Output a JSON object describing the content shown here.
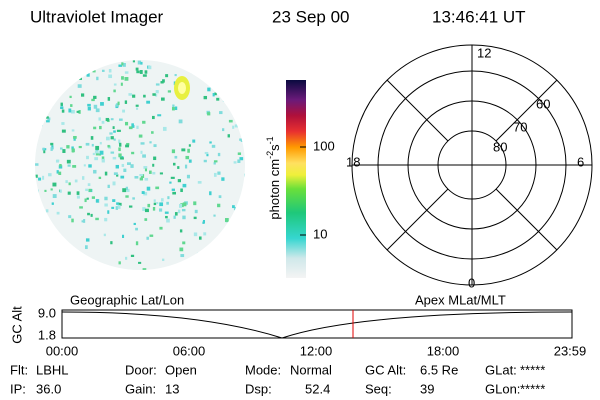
{
  "header": {
    "instrument": "Ultraviolet Imager",
    "date": "23 Sep 00",
    "time": "13:46:41 UT"
  },
  "colorbar": {
    "unit": "photon cm",
    "exp1": "-2",
    "unit2": "s",
    "exp2": "-1",
    "ticks": [
      "100",
      "10"
    ]
  },
  "polar_plot": {
    "mlt_labels": [
      "12",
      "6",
      "0",
      "18"
    ],
    "lat_labels": [
      "60",
      "70",
      "80"
    ]
  },
  "altitude_plot": {
    "ylabel": "GC Alt",
    "yticks": [
      "9.0",
      "1.8"
    ],
    "left_title": "Geographic Lat/Lon",
    "right_title": "Apex MLat/MLT",
    "xticks": [
      "00:00",
      "06:00",
      "12:00",
      "18:00",
      "23:59"
    ]
  },
  "footer": {
    "rows": [
      [
        {
          "label": "Flt:",
          "value": "LBHL"
        },
        {
          "label": "Door:",
          "value": "Open"
        },
        {
          "label": "Mode:",
          "value": "Normal"
        },
        {
          "label": "GC Alt:",
          "value": "6.5 Re"
        },
        {
          "label": "GLat:",
          "value": "*****"
        }
      ],
      [
        {
          "label": "IP:",
          "value": "36.0"
        },
        {
          "label": "Gain:",
          "value": "13"
        },
        {
          "label": "Dsp:",
          "value": "52.4"
        },
        {
          "label": "Seq:",
          "value": "39"
        },
        {
          "label": "GLon:",
          "value": "*****"
        }
      ]
    ]
  }
}
